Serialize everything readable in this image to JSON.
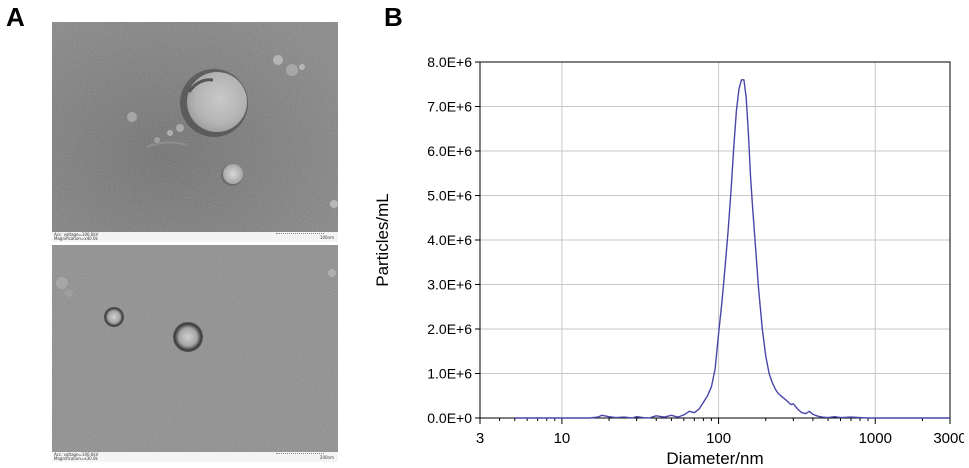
{
  "panel_a": {
    "label": "A",
    "images": [
      {
        "caption_line1": "Acc. voltage=100.0kV",
        "caption_line2": "Magnification=x40.0k",
        "scale_text": "100nm"
      },
      {
        "caption_line1": "Acc. voltage=100.0kV",
        "caption_line2": "Magnification=x30.0k",
        "scale_text": "200nm"
      }
    ]
  },
  "panel_b": {
    "label": "B"
  },
  "chart_data": {
    "type": "line",
    "xlabel": "Diameter/nm",
    "ylabel": "Particles/mL",
    "x_scale": "log",
    "xlim": [
      3,
      3000
    ],
    "ylim": [
      0,
      8000000
    ],
    "x_ticks": [
      3,
      10,
      100,
      1000,
      3000
    ],
    "x_tick_labels": [
      "3",
      "10",
      "100",
      "1000",
      "3000"
    ],
    "y_ticks": [
      0,
      1000000,
      2000000,
      3000000,
      4000000,
      5000000,
      6000000,
      7000000,
      8000000
    ],
    "y_tick_labels": [
      "0.0E+0",
      "1.0E+6",
      "2.0E+6",
      "3.0E+6",
      "4.0E+6",
      "5.0E+6",
      "6.0E+6",
      "7.0E+6",
      "8.0E+6"
    ],
    "grid": true,
    "series_color": "#4a46a8",
    "series": [
      {
        "x": [
          5,
          10,
          15,
          17,
          18,
          20,
          22,
          25,
          28,
          30,
          33,
          36,
          40,
          45,
          50,
          55,
          60,
          65,
          70,
          75,
          80,
          85,
          90,
          95,
          100,
          105,
          110,
          115,
          120,
          125,
          130,
          135,
          140,
          145,
          150,
          155,
          160,
          165,
          170,
          180,
          190,
          200,
          210,
          220,
          230,
          240,
          250,
          270,
          290,
          300,
          320,
          340,
          360,
          380,
          400,
          430,
          460,
          500,
          550,
          600,
          700,
          800,
          900,
          1000,
          1500,
          2000,
          3000
        ],
        "y": [
          0,
          0,
          0,
          20000,
          60000,
          30000,
          10000,
          20000,
          0,
          30000,
          10000,
          0,
          50000,
          20000,
          60000,
          20000,
          70000,
          150000,
          120000,
          200000,
          350000,
          500000,
          700000,
          1100000,
          1900000,
          2600000,
          3400000,
          4200000,
          5100000,
          6100000,
          6900000,
          7400000,
          7600000,
          7600000,
          7200000,
          6400000,
          5400000,
          4700000,
          4100000,
          2900000,
          2000000,
          1400000,
          1000000,
          800000,
          650000,
          550000,
          500000,
          400000,
          300000,
          320000,
          200000,
          120000,
          100000,
          150000,
          80000,
          40000,
          20000,
          10000,
          30000,
          10000,
          20000,
          10000,
          0,
          0,
          0,
          0,
          0
        ]
      }
    ]
  }
}
